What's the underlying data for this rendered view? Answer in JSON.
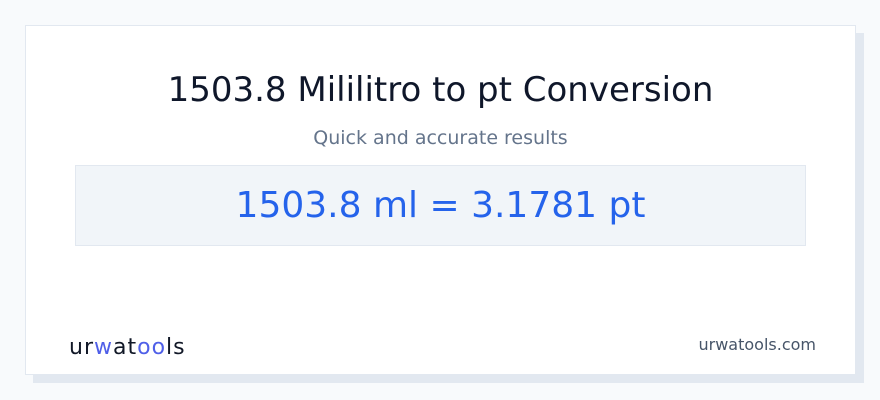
{
  "title": "1503.8 Mililitro to pt Conversion",
  "subtitle": "Quick and accurate results",
  "result": "1503.8 ml = 3.1781 pt",
  "logo": {
    "text": "urwatools",
    "parts": [
      "ur",
      "w",
      "at",
      "oo",
      "ls"
    ]
  },
  "site": "urwatools.com",
  "colors": {
    "accent": "#2563eb",
    "logo_accent": "#4f5fe8",
    "background": "#f8fafc"
  }
}
